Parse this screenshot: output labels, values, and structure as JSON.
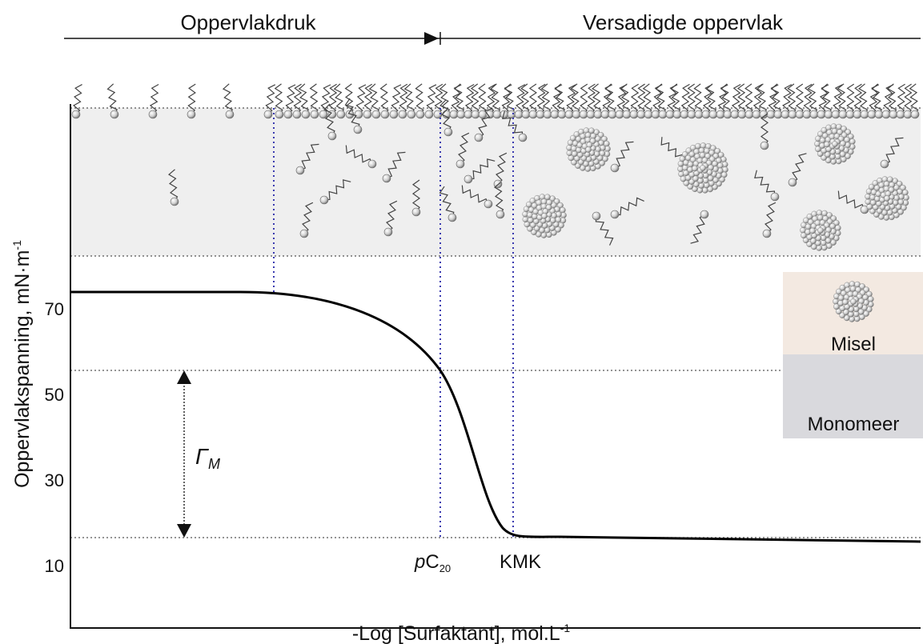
{
  "header": {
    "left": "Oppervlakdruk",
    "right": "Versadigde oppervlak"
  },
  "axis": {
    "y_label": {
      "text": "Oppervlakspanning, mN·m",
      "superscript": "-1"
    },
    "x_label": {
      "text": "-Log [Surfaktant], mol.L",
      "superscript": "-1"
    },
    "yticks": [
      10,
      30,
      50,
      70
    ]
  },
  "annotations": {
    "gamma": {
      "symbol": "Γ",
      "subscript": "M"
    },
    "pc20": {
      "italic": "p",
      "text": "C",
      "subscript": "20"
    },
    "kmk": "KMK"
  },
  "legend": {
    "micelle": "Misel",
    "monomer": "Monomeer"
  }
}
